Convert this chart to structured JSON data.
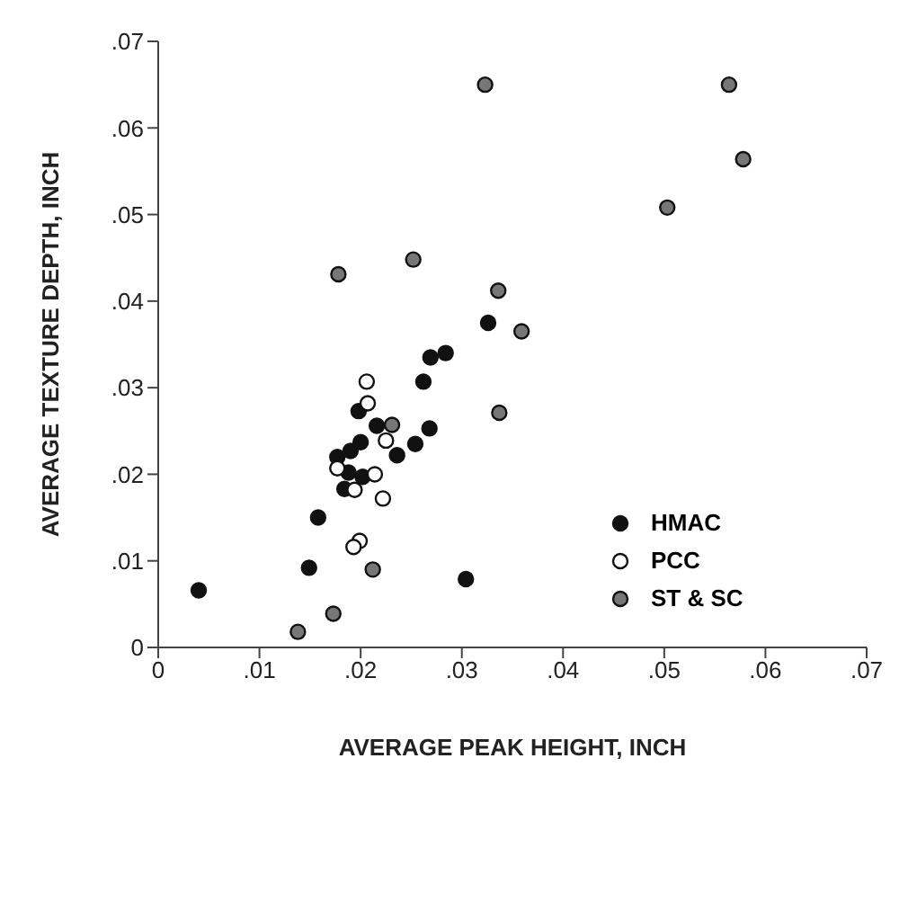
{
  "chart_data": {
    "type": "scatter",
    "xlabel": "AVERAGE PEAK HEIGHT, INCH",
    "ylabel": "AVERAGE TEXTURE DEPTH, INCH",
    "xlim": [
      0,
      0.07
    ],
    "ylim": [
      0,
      0.07
    ],
    "xticks": [
      {
        "value": 0,
        "label": "0"
      },
      {
        "value": 0.01,
        "label": ".01"
      },
      {
        "value": 0.02,
        "label": ".02"
      },
      {
        "value": 0.03,
        "label": ".03"
      },
      {
        "value": 0.04,
        "label": ".04"
      },
      {
        "value": 0.05,
        "label": ".05"
      },
      {
        "value": 0.06,
        "label": ".06"
      },
      {
        "value": 0.07,
        "label": ".07"
      }
    ],
    "yticks": [
      {
        "value": 0,
        "label": "0"
      },
      {
        "value": 0.01,
        "label": ".01"
      },
      {
        "value": 0.02,
        "label": ".02"
      },
      {
        "value": 0.03,
        "label": ".03"
      },
      {
        "value": 0.04,
        "label": ".04"
      },
      {
        "value": 0.05,
        "label": ".05"
      },
      {
        "value": 0.06,
        "label": ".06"
      },
      {
        "value": 0.07,
        "label": ".07"
      }
    ],
    "grid": false,
    "legend": "right",
    "marker": "circle",
    "series": [
      {
        "name": "HMAC",
        "color": "#111111",
        "x": [
          0.004,
          0.0149,
          0.0158,
          0.0177,
          0.019,
          0.02,
          0.0198,
          0.0188,
          0.0184,
          0.0202,
          0.0216,
          0.0236,
          0.0254,
          0.0268,
          0.0262,
          0.0269,
          0.0284,
          0.0326,
          0.0304
        ],
        "values": [
          0.0066,
          0.0092,
          0.015,
          0.022,
          0.0227,
          0.0237,
          0.0273,
          0.0202,
          0.0183,
          0.0197,
          0.0256,
          0.0222,
          0.0235,
          0.0253,
          0.0307,
          0.0335,
          0.034,
          0.0375,
          0.0079
        ]
      },
      {
        "name": "PCC",
        "color": "#ffffff",
        "x": [
          0.0206,
          0.0207,
          0.0225,
          0.0177,
          0.0214,
          0.0194,
          0.0222,
          0.0199,
          0.0193
        ],
        "values": [
          0.0307,
          0.0282,
          0.0239,
          0.0207,
          0.02,
          0.0182,
          0.0172,
          0.0123,
          0.0116
        ]
      },
      {
        "name": "ST & SC",
        "color": "#777777",
        "x": [
          0.0178,
          0.0252,
          0.0336,
          0.0359,
          0.0337,
          0.0231,
          0.0212,
          0.0173,
          0.0138,
          0.0323,
          0.0564,
          0.0578,
          0.0503
        ],
        "values": [
          0.0431,
          0.0448,
          0.0412,
          0.0365,
          0.0271,
          0.0257,
          0.009,
          0.0039,
          0.0018,
          0.065,
          0.065,
          0.0564,
          0.0508
        ]
      }
    ]
  }
}
